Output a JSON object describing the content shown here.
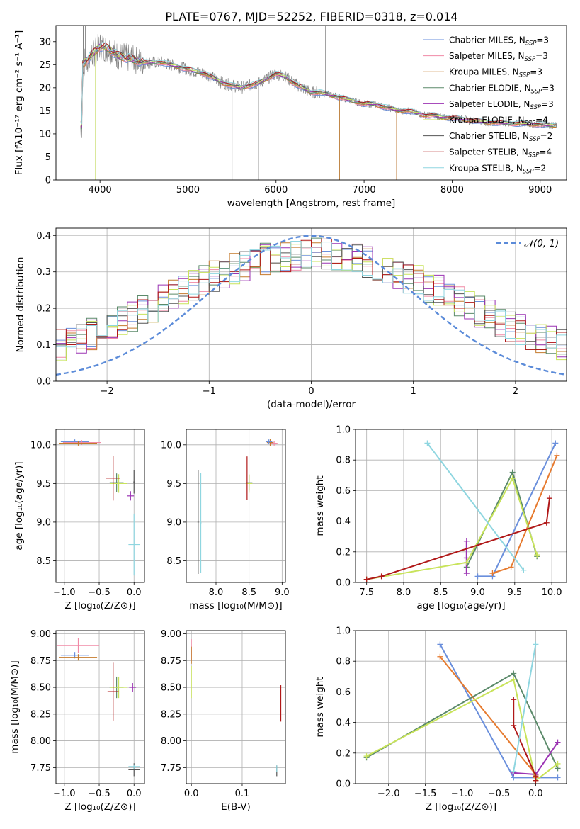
{
  "figure_title": "PLATE=0767, MJD=52252, FIBERID=0318, z=0.014",
  "colors": {
    "Chabrier MILES": "#6a8fdc",
    "Salpeter MILES": "#f08aa6",
    "Kroupa MILES": "#c47a2c",
    "Chabrier ELODIE": "#5b8a6a",
    "Salpeter ELODIE": "#9b33b3",
    "Kroupa ELODIE": "#c8e35a",
    "Chabrier STELIB": "#555555",
    "Salpeter STELIB": "#b01818",
    "Kroupa STELIB": "#8fd6e0",
    "data": "#808080",
    "gaussian": "#5b8bd9",
    "orange": "#e67a2e",
    "grid": "#b0b0b0"
  },
  "chart_data": [
    {
      "id": "spectrum",
      "type": "line",
      "xlabel": "wavelength [Angstrom, rest frame]",
      "ylabel": "Flux [fλ10⁻¹⁷ erg cm⁻² s⁻¹ A⁻¹]",
      "xlim": [
        3500,
        9300
      ],
      "ylim": [
        0,
        33.5
      ],
      "xticks": [
        "4000",
        "5000",
        "6000",
        "7000",
        "8000",
        "9000"
      ],
      "yticks": [
        "0",
        "5",
        "10",
        "15",
        "20",
        "25",
        "30"
      ],
      "continuum": {
        "x": [
          3800,
          3900,
          4000,
          4100,
          4200,
          4300,
          4400,
          4500,
          4600,
          4700,
          4800,
          4900,
          5000,
          5100,
          5200,
          5300,
          5400,
          5500,
          5600,
          5700,
          5800,
          5900,
          6000,
          6100,
          6200,
          6300,
          6400,
          6500,
          6600,
          6700,
          6800,
          6900,
          7000,
          7100,
          7200,
          7300,
          7400,
          7500,
          7600,
          7700,
          7800,
          7900,
          8000,
          8200,
          8400,
          8600,
          8800,
          9000,
          9200
        ],
        "y": [
          25,
          27,
          29,
          28.5,
          27,
          26.5,
          26,
          25.5,
          25.5,
          25.5,
          25,
          24.5,
          24,
          23.5,
          23,
          22,
          21,
          20.5,
          20,
          20.5,
          21,
          22,
          23,
          22.5,
          21,
          20,
          19,
          19,
          18.5,
          18,
          17.5,
          17,
          16.5,
          16.5,
          16,
          15.5,
          15,
          15,
          14.5,
          14,
          14,
          13.5,
          13.5,
          13,
          12.5,
          12.3,
          12.2,
          12,
          11.8
        ]
      },
      "legend": [
        {
          "label": "Chabrier MILES, N",
          "sub": "SSP",
          "eq": "=3",
          "color": "Chabrier MILES"
        },
        {
          "label": "Salpeter MILES, N",
          "sub": "SSP",
          "eq": "=3",
          "color": "Salpeter MILES"
        },
        {
          "label": "Kroupa MILES, N",
          "sub": "SSP",
          "eq": "=3",
          "color": "Kroupa MILES"
        },
        {
          "label": "Chabrier ELODIE, N",
          "sub": "SSP",
          "eq": "=3",
          "color": "Chabrier ELODIE"
        },
        {
          "label": "Salpeter ELODIE, N",
          "sub": "SSP",
          "eq": "=3",
          "color": "Salpeter ELODIE"
        },
        {
          "label": "Kroupa ELODIE, N",
          "sub": "SSP",
          "eq": "=4",
          "color": "Kroupa ELODIE"
        },
        {
          "label": "Chabrier STELIB, N",
          "sub": "SSP",
          "eq": "=2",
          "color": "Chabrier STELIB"
        },
        {
          "label": "Salpeter STELIB, N",
          "sub": "SSP",
          "eq": "=4",
          "color": "Salpeter STELIB"
        },
        {
          "label": "Kroupa STELIB, N",
          "sub": "SSP",
          "eq": "=2",
          "color": "Kroupa STELIB"
        }
      ]
    },
    {
      "id": "hist",
      "type": "histogram",
      "xlabel": "(data-model)/error",
      "ylabel": "Normed distribution",
      "xlim": [
        -2.5,
        2.5
      ],
      "ylim": [
        0,
        0.42
      ],
      "xticks": [
        "−2",
        "−1",
        "0",
        "1",
        "2"
      ],
      "yticks": [
        "0.0",
        "0.1",
        "0.2",
        "0.3",
        "0.4"
      ],
      "legend": "𝒩(0, 1)"
    },
    {
      "id": "ageZ",
      "type": "scatter-errorbar",
      "xlabel": "Z [log₁₀(Z/Z⊙)]",
      "ylabel": "age  [log₁₀(age/yr)]",
      "xlim": [
        -1.12,
        0.15
      ],
      "ylim": [
        8.22,
        10.2
      ],
      "xticks": [
        "−1.0",
        "−0.5",
        "0.0"
      ],
      "yticks": [
        "8.5",
        "9.0",
        "9.5",
        "10.0"
      ],
      "points": [
        {
          "s": "Chabrier MILES",
          "x": -0.85,
          "y": 10.04,
          "ex": 0.2,
          "ey": 0.03
        },
        {
          "s": "Salpeter MILES",
          "x": -0.75,
          "y": 10.03,
          "ex": 0.27,
          "ey": 0.03
        },
        {
          "s": "Kroupa MILES",
          "x": -0.8,
          "y": 10.02,
          "ex": 0.27,
          "ey": 0.03
        },
        {
          "s": "Chabrier ELODIE",
          "x": -0.25,
          "y": 9.51,
          "ex": 0.1,
          "ey": 0.12
        },
        {
          "s": "Salpeter ELODIE",
          "x": -0.05,
          "y": 9.34,
          "ex": 0.05,
          "ey": 0.06
        },
        {
          "s": "Kroupa ELODIE",
          "x": -0.22,
          "y": 9.5,
          "ex": 0.12,
          "ey": 0.12
        },
        {
          "s": "Chabrier STELIB",
          "x": 0.0,
          "y": 9.52,
          "ex": 0.01,
          "ey": 0.15
        },
        {
          "s": "Salpeter STELIB",
          "x": -0.3,
          "y": 9.57,
          "ex": 0.1,
          "ey": 0.29
        },
        {
          "s": "Kroupa STELIB",
          "x": 0.0,
          "y": 8.71,
          "ex": 0.08,
          "ey": 0.4
        }
      ]
    },
    {
      "id": "ageMass",
      "type": "scatter-errorbar",
      "xlabel": "mass [log₁₀(M/M⊙)]",
      "ylabel": "",
      "xlim": [
        7.55,
        9.05
      ],
      "ylim": [
        8.22,
        10.2
      ],
      "xticks": [
        "8.0",
        "8.5",
        "9.0"
      ],
      "yticks": [
        "8.5",
        "9.0",
        "9.5",
        "10.0"
      ],
      "points": [
        {
          "s": "Salpeter MILES",
          "x": 8.88,
          "y": 10.02,
          "ex": 0.05,
          "ey": 0.03
        },
        {
          "s": "Kroupa MILES",
          "x": 8.82,
          "y": 10.03,
          "ex": 0.05,
          "ey": 0.05
        },
        {
          "s": "Chabrier MILES",
          "x": 8.8,
          "y": 10.04,
          "ex": 0.05,
          "ey": 0.03
        },
        {
          "s": "Chabrier ELODIE",
          "x": 8.5,
          "y": 9.51,
          "ex": 0.05,
          "ey": 0.1
        },
        {
          "s": "Kroupa ELODIE",
          "x": 8.5,
          "y": 9.5,
          "ex": 0.05,
          "ey": 0.12
        },
        {
          "s": "Salpeter STELIB",
          "x": 8.47,
          "y": 9.57,
          "ex": 0.0,
          "ey": 0.28
        },
        {
          "s": "Chabrier STELIB",
          "x": 7.73,
          "y": 9.0,
          "ex": 0.01,
          "ey": 0.67
        },
        {
          "s": "Kroupa STELIB",
          "x": 7.77,
          "y": 8.99,
          "ex": 0.01,
          "ey": 0.65
        }
      ]
    },
    {
      "id": "weightAge",
      "type": "line",
      "xlabel": "age  [log₁₀(age/yr)]",
      "ylabel": "mass weight",
      "xlim": [
        7.35,
        10.2
      ],
      "ylim": [
        0,
        1.0
      ],
      "xticks": [
        "7.5",
        "8.0",
        "8.5",
        "9.0",
        "9.5",
        "10.0"
      ],
      "yticks": [
        "0.0",
        "0.2",
        "0.4",
        "0.6",
        "0.8",
        "1.0"
      ],
      "series": [
        {
          "s": "Chabrier MILES",
          "x": [
            9.0,
            9.2,
            10.05
          ],
          "y": [
            0.04,
            0.04,
            0.91
          ]
        },
        {
          "s": "Kroupa MILES",
          "x": [
            9.2,
            9.45,
            10.07
          ],
          "y": [
            0.06,
            0.1,
            0.83
          ]
        },
        {
          "s": "Chabrier ELODIE",
          "x": [
            8.85,
            9.47,
            9.8
          ],
          "y": [
            0.1,
            0.72,
            0.17
          ]
        },
        {
          "s": "Salpeter ELODIE",
          "x": [
            8.85,
            8.85,
            8.85
          ],
          "y": [
            0.06,
            0.16,
            0.27
          ]
        },
        {
          "s": "Kroupa ELODIE",
          "x": [
            7.5,
            8.85,
            9.47,
            9.8
          ],
          "y": [
            0.02,
            0.13,
            0.68,
            0.18
          ]
        },
        {
          "s": "Salpeter STELIB",
          "x": [
            7.5,
            7.7,
            9.93,
            9.97
          ],
          "y": [
            0.02,
            0.04,
            0.39,
            0.55
          ]
        },
        {
          "s": "Kroupa STELIB",
          "x": [
            8.32,
            9.62
          ],
          "y": [
            0.91,
            0.08
          ]
        }
      ]
    },
    {
      "id": "massZ",
      "type": "scatter-errorbar",
      "xlabel": "Z [log₁₀(Z/Z⊙)]",
      "ylabel": "mass [log₁₀(M/M⊙)]",
      "xlim": [
        -1.12,
        0.15
      ],
      "ylim": [
        7.6,
        9.03
      ],
      "xticks": [
        "−1.0",
        "−0.5",
        "0.0"
      ],
      "yticks": [
        "7.75",
        "8.00",
        "8.25",
        "8.50",
        "8.75",
        "9.00"
      ],
      "points": [
        {
          "s": "Salpeter MILES",
          "x": -0.8,
          "y": 8.89,
          "ex": 0.3,
          "ey": 0.07
        },
        {
          "s": "Chabrier MILES",
          "x": -0.85,
          "y": 8.8,
          "ex": 0.2,
          "ey": 0.03
        },
        {
          "s": "Kroupa MILES",
          "x": -0.8,
          "y": 8.78,
          "ex": 0.27,
          "ey": 0.03
        },
        {
          "s": "Chabrier ELODIE",
          "x": -0.25,
          "y": 8.5,
          "ex": 0.1,
          "ey": 0.1
        },
        {
          "s": "Kroupa ELODIE",
          "x": -0.22,
          "y": 8.5,
          "ex": 0.12,
          "ey": 0.1
        },
        {
          "s": "Salpeter ELODIE",
          "x": -0.02,
          "y": 8.5,
          "ex": 0.05,
          "ey": 0.04
        },
        {
          "s": "Salpeter STELIB",
          "x": -0.3,
          "y": 8.46,
          "ex": 0.08,
          "ey": 0.27
        },
        {
          "s": "Chabrier STELIB",
          "x": 0.0,
          "y": 7.73,
          "ex": 0.08,
          "ey": 0.06
        },
        {
          "s": "Kroupa STELIB",
          "x": 0.0,
          "y": 7.76,
          "ex": 0.08,
          "ey": 0.02
        }
      ]
    },
    {
      "id": "massEbv",
      "type": "scatter-errorbar",
      "xlabel": "E(B-V)",
      "ylabel": "",
      "xlim": [
        -0.01,
        0.185
      ],
      "ylim": [
        7.6,
        9.03
      ],
      "xticks": [
        "0.0",
        "0.1"
      ],
      "yticks": [
        "7.75",
        "8.00",
        "8.25",
        "8.50",
        "8.75",
        "9.00"
      ],
      "points": [
        {
          "s": "Salpeter MILES",
          "x": 0.0,
          "y": 8.85,
          "ex": 0.0,
          "ey": 0.1
        },
        {
          "s": "Kroupa MILES",
          "x": 0.0,
          "y": 8.8,
          "ex": 0.0,
          "ey": 0.08
        },
        {
          "s": "Kroupa ELODIE",
          "x": 0.0,
          "y": 8.55,
          "ex": 0.0,
          "ey": 0.15
        },
        {
          "s": "Salpeter STELIB",
          "x": 0.176,
          "y": 8.35,
          "ex": 0.0,
          "ey": 0.17
        },
        {
          "s": "Chabrier STELIB",
          "x": 0.168,
          "y": 7.72,
          "ex": 0.0,
          "ey": 0.05
        },
        {
          "s": "Kroupa STELIB",
          "x": 0.168,
          "y": 7.74,
          "ex": 0.0,
          "ey": 0.03
        }
      ]
    },
    {
      "id": "weightZ",
      "type": "line",
      "xlabel": "Z [log₁₀(Z/Z⊙)]",
      "ylabel": "mass weight",
      "xlim": [
        -2.45,
        0.42
      ],
      "ylim": [
        0,
        1.0
      ],
      "xticks": [
        "−2.0",
        "−1.5",
        "−1.0",
        "−0.5",
        "0.0"
      ],
      "yticks": [
        "0.0",
        "0.2",
        "0.4",
        "0.6",
        "0.8",
        "1.0"
      ],
      "series": [
        {
          "s": "Chabrier MILES",
          "x": [
            -1.3,
            -0.3,
            0.3
          ],
          "y": [
            0.91,
            0.04,
            0.04
          ]
        },
        {
          "s": "Kroupa MILES",
          "x": [
            -1.3,
            0.0,
            0.0
          ],
          "y": [
            0.83,
            0.06,
            0.04
          ]
        },
        {
          "s": "Chabrier ELODIE",
          "x": [
            -2.3,
            -0.3,
            0.3
          ],
          "y": [
            0.17,
            0.72,
            0.1
          ]
        },
        {
          "s": "Salpeter ELODIE",
          "x": [
            -0.3,
            0.0,
            0.3
          ],
          "y": [
            0.07,
            0.06,
            0.27
          ]
        },
        {
          "s": "Kroupa ELODIE",
          "x": [
            -2.3,
            -0.3,
            0.0,
            0.3
          ],
          "y": [
            0.18,
            0.68,
            0.02,
            0.13
          ]
        },
        {
          "s": "Salpeter STELIB",
          "x": [
            -0.3,
            -0.3,
            0.0,
            0.0
          ],
          "y": [
            0.55,
            0.38,
            0.05,
            0.02
          ]
        },
        {
          "s": "Kroupa STELIB",
          "x": [
            0.0,
            -0.3
          ],
          "y": [
            0.91,
            0.08
          ]
        }
      ]
    }
  ]
}
